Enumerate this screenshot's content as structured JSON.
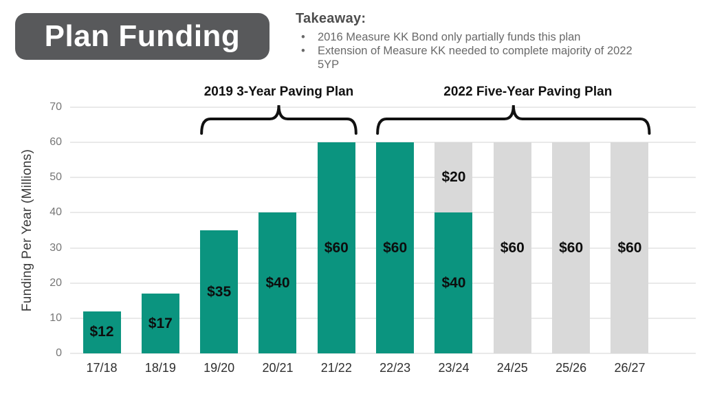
{
  "slide_title": "Plan Funding",
  "takeaway": {
    "heading": "Takeaway:",
    "bullets": [
      "2016 Measure KK Bond only partially funds this plan",
      "Extension of Measure KK needed to complete majority of 2022 5YP"
    ]
  },
  "chart_data": {
    "type": "bar",
    "stacked": true,
    "ylabel": "Funding Per Year (Millions)",
    "ylim": [
      0,
      70
    ],
    "yticks": [
      0,
      10,
      20,
      30,
      40,
      50,
      60,
      70
    ],
    "grid": true,
    "value_prefix": "$",
    "categories": [
      "17/18",
      "18/19",
      "19/20",
      "20/21",
      "21/22",
      "22/23",
      "23/24",
      "24/25",
      "25/26",
      "26/27"
    ],
    "series": [
      {
        "name": "funded-teal",
        "color": "#0b947f",
        "values": [
          12,
          17,
          35,
          40,
          60,
          60,
          40,
          0,
          0,
          0
        ]
      },
      {
        "name": "unfunded-gray",
        "color": "#d9d9d9",
        "values": [
          0,
          0,
          0,
          0,
          0,
          0,
          20,
          60,
          60,
          60
        ]
      }
    ],
    "annotations": [
      {
        "label": "2019 3-Year Paving Plan",
        "from": "19/20",
        "to": "21/22"
      },
      {
        "label": "2022 Five-Year Paving Plan",
        "from": "22/23",
        "to": "26/27"
      }
    ],
    "colors": {
      "funded": "#0b947f",
      "unfunded": "#d9d9d9",
      "gridline": "#e9e9e9",
      "brace": "#111111",
      "title_box": "#58595b"
    }
  }
}
